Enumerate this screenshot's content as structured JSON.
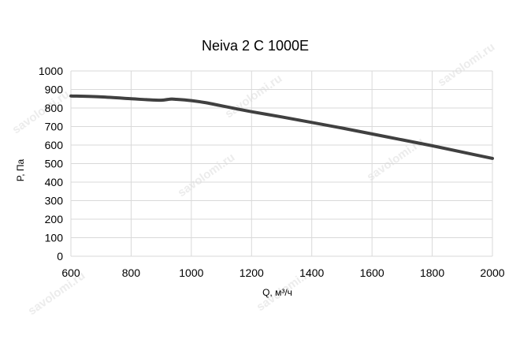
{
  "chart_data": {
    "type": "line",
    "title": "Neiva 2 C 1000E",
    "xlabel": "Q, м³/ч",
    "ylabel": "P, Па",
    "xlim": [
      600,
      2000
    ],
    "ylim": [
      0,
      1000
    ],
    "x_ticks": [
      600,
      800,
      1000,
      1200,
      1400,
      1600,
      1800,
      2000
    ],
    "y_ticks": [
      0,
      100,
      200,
      300,
      400,
      500,
      600,
      700,
      800,
      900,
      1000
    ],
    "grid": true,
    "legend": "none",
    "series": [
      {
        "color": "#404040",
        "x": [
          600,
          700,
          800,
          850,
          900,
          930,
          950,
          1000,
          1050,
          1100,
          1200,
          1300,
          1400,
          1500,
          1600,
          1700,
          1800,
          1900,
          2000
        ],
        "y": [
          865,
          860,
          850,
          845,
          842,
          848,
          847,
          840,
          828,
          812,
          780,
          752,
          722,
          692,
          660,
          628,
          596,
          562,
          528
        ]
      }
    ]
  },
  "watermark": {
    "text": "savolomi.ru",
    "color": "#ececec"
  }
}
